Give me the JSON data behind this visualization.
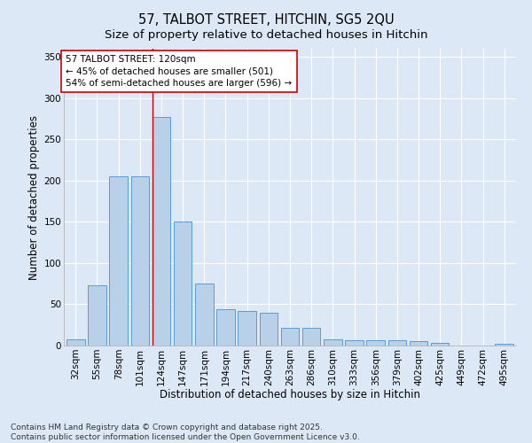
{
  "title": "57, TALBOT STREET, HITCHIN, SG5 2QU",
  "subtitle": "Size of property relative to detached houses in Hitchin",
  "xlabel": "Distribution of detached houses by size in Hitchin",
  "ylabel": "Number of detached properties",
  "categories": [
    "32sqm",
    "55sqm",
    "78sqm",
    "101sqm",
    "124sqm",
    "147sqm",
    "171sqm",
    "194sqm",
    "217sqm",
    "240sqm",
    "263sqm",
    "286sqm",
    "310sqm",
    "333sqm",
    "356sqm",
    "379sqm",
    "402sqm",
    "425sqm",
    "449sqm",
    "472sqm",
    "495sqm"
  ],
  "values": [
    7,
    73,
    205,
    205,
    277,
    150,
    75,
    44,
    42,
    40,
    22,
    22,
    7,
    6,
    6,
    6,
    5,
    3,
    0,
    0,
    2
  ],
  "bar_color": "#b8d0e8",
  "bar_edge_color": "#5b9bd5",
  "background_color": "#dce8f5",
  "grid_color": "#ffffff",
  "annotation_line1": "57 TALBOT STREET: 120sqm",
  "annotation_line2": "← 45% of detached houses are smaller (501)",
  "annotation_line3": "54% of semi-detached houses are larger (596) →",
  "vline_x": 3.57,
  "vline_color": "#cc0000",
  "ylim": [
    0,
    360
  ],
  "yticks": [
    0,
    50,
    100,
    150,
    200,
    250,
    300,
    350
  ],
  "footer_text": "Contains HM Land Registry data © Crown copyright and database right 2025.\nContains public sector information licensed under the Open Government Licence v3.0.",
  "title_fontsize": 10.5,
  "subtitle_fontsize": 9.5,
  "axis_label_fontsize": 8.5,
  "tick_fontsize": 7.5,
  "annotation_fontsize": 7.5,
  "footer_fontsize": 6.5
}
